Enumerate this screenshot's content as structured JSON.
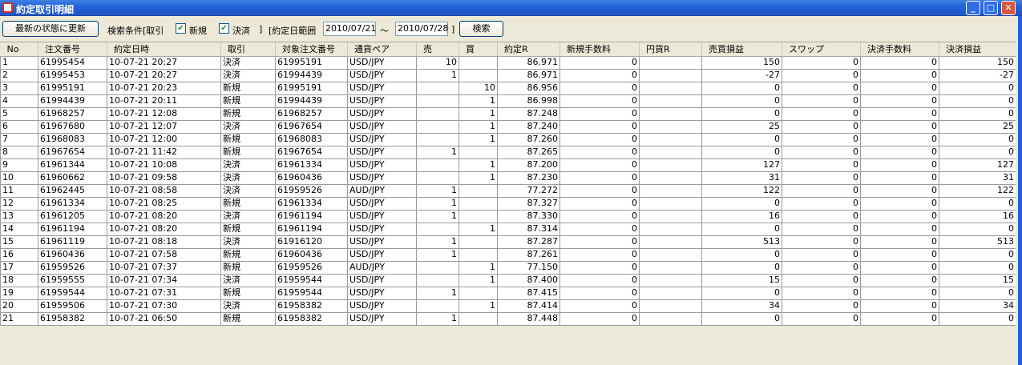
{
  "window": {
    "title": "約定取引明細",
    "minimize": "_",
    "maximize": "□",
    "close": "✕",
    "accent": "#2562d8"
  },
  "toolbar": {
    "refresh_label": "最新の状態に更新",
    "search_cond_label": "検索条件[取引",
    "new_label": "新規",
    "new_checked": true,
    "settle_label": "決済",
    "settle_checked": true,
    "bracket_close": "]",
    "date_range_label": "[約定日範囲",
    "date_from": "2010/07/21",
    "tilde": "～",
    "date_to": "2010/07/28",
    "bracket_close2": "]",
    "search_label": "検索"
  },
  "table": {
    "columns": [
      "No",
      "注文番号",
      "約定日時",
      "取引",
      "対象注文番号",
      "通貨ペア",
      "売",
      "買",
      "約定R",
      "新規手数料",
      "円貨R",
      "売買損益",
      "スワップ",
      "決済手数料",
      "決済損益"
    ],
    "rows": [
      [
        "1",
        "61995454",
        "10-07-21 20:27",
        "決済",
        "61995191",
        "USD/JPY",
        "10",
        "",
        "86.971",
        "0",
        "",
        "150",
        "0",
        "0",
        "150"
      ],
      [
        "2",
        "61995453",
        "10-07-21 20:27",
        "決済",
        "61994439",
        "USD/JPY",
        "1",
        "",
        "86.971",
        "0",
        "",
        "-27",
        "0",
        "0",
        "-27"
      ],
      [
        "3",
        "61995191",
        "10-07-21 20:23",
        "新規",
        "61995191",
        "USD/JPY",
        "",
        "10",
        "86.956",
        "0",
        "",
        "0",
        "0",
        "0",
        "0"
      ],
      [
        "4",
        "61994439",
        "10-07-21 20:11",
        "新規",
        "61994439",
        "USD/JPY",
        "",
        "1",
        "86.998",
        "0",
        "",
        "0",
        "0",
        "0",
        "0"
      ],
      [
        "5",
        "61968257",
        "10-07-21 12:08",
        "新規",
        "61968257",
        "USD/JPY",
        "",
        "1",
        "87.248",
        "0",
        "",
        "0",
        "0",
        "0",
        "0"
      ],
      [
        "6",
        "61967680",
        "10-07-21 12:07",
        "決済",
        "61967654",
        "USD/JPY",
        "",
        "1",
        "87.240",
        "0",
        "",
        "25",
        "0",
        "0",
        "25"
      ],
      [
        "7",
        "61968083",
        "10-07-21 12:00",
        "新規",
        "61968083",
        "USD/JPY",
        "",
        "1",
        "87.260",
        "0",
        "",
        "0",
        "0",
        "0",
        "0"
      ],
      [
        "8",
        "61967654",
        "10-07-21 11:42",
        "新規",
        "61967654",
        "USD/JPY",
        "1",
        "",
        "87.265",
        "0",
        "",
        "0",
        "0",
        "0",
        "0"
      ],
      [
        "9",
        "61961344",
        "10-07-21 10:08",
        "決済",
        "61961334",
        "USD/JPY",
        "",
        "1",
        "87.200",
        "0",
        "",
        "127",
        "0",
        "0",
        "127"
      ],
      [
        "10",
        "61960662",
        "10-07-21 09:58",
        "決済",
        "61960436",
        "USD/JPY",
        "",
        "1",
        "87.230",
        "0",
        "",
        "31",
        "0",
        "0",
        "31"
      ],
      [
        "11",
        "61962445",
        "10-07-21 08:58",
        "決済",
        "61959526",
        "AUD/JPY",
        "1",
        "",
        "77.272",
        "0",
        "",
        "122",
        "0",
        "0",
        "122"
      ],
      [
        "12",
        "61961334",
        "10-07-21 08:25",
        "新規",
        "61961334",
        "USD/JPY",
        "1",
        "",
        "87.327",
        "0",
        "",
        "0",
        "0",
        "0",
        "0"
      ],
      [
        "13",
        "61961205",
        "10-07-21 08:20",
        "決済",
        "61961194",
        "USD/JPY",
        "1",
        "",
        "87.330",
        "0",
        "",
        "16",
        "0",
        "0",
        "16"
      ],
      [
        "14",
        "61961194",
        "10-07-21 08:20",
        "新規",
        "61961194",
        "USD/JPY",
        "",
        "1",
        "87.314",
        "0",
        "",
        "0",
        "0",
        "0",
        "0"
      ],
      [
        "15",
        "61961119",
        "10-07-21 08:18",
        "決済",
        "61916120",
        "USD/JPY",
        "1",
        "",
        "87.287",
        "0",
        "",
        "513",
        "0",
        "0",
        "513"
      ],
      [
        "16",
        "61960436",
        "10-07-21 07:58",
        "新規",
        "61960436",
        "USD/JPY",
        "1",
        "",
        "87.261",
        "0",
        "",
        "0",
        "0",
        "0",
        "0"
      ],
      [
        "17",
        "61959526",
        "10-07-21 07:37",
        "新規",
        "61959526",
        "AUD/JPY",
        "",
        "1",
        "77.150",
        "0",
        "",
        "0",
        "0",
        "0",
        "0"
      ],
      [
        "18",
        "61959555",
        "10-07-21 07:34",
        "決済",
        "61959544",
        "USD/JPY",
        "",
        "1",
        "87.400",
        "0",
        "",
        "15",
        "0",
        "0",
        "15"
      ],
      [
        "19",
        "61959544",
        "10-07-21 07:31",
        "新規",
        "61959544",
        "USD/JPY",
        "1",
        "",
        "87.415",
        "0",
        "",
        "0",
        "0",
        "0",
        "0"
      ],
      [
        "20",
        "61959506",
        "10-07-21 07:30",
        "決済",
        "61958382",
        "USD/JPY",
        "",
        "1",
        "87.414",
        "0",
        "",
        "34",
        "0",
        "0",
        "34"
      ],
      [
        "21",
        "61958382",
        "10-07-21 06:50",
        "新規",
        "61958382",
        "USD/JPY",
        "1",
        "",
        "87.448",
        "0",
        "",
        "0",
        "0",
        "0",
        "0"
      ]
    ]
  }
}
